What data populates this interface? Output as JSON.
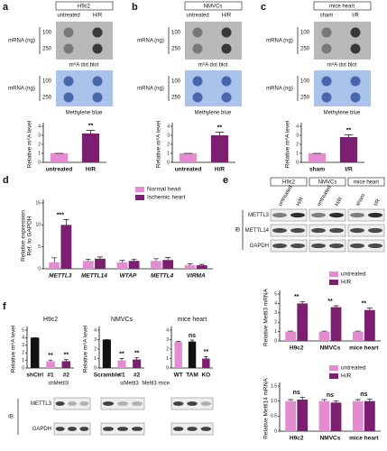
{
  "panel_letters": [
    "a",
    "b",
    "c",
    "d",
    "e",
    "f"
  ],
  "dot_blots": [
    {
      "header": "H9c2",
      "lanes": [
        "untreated",
        "H/R"
      ],
      "amount_label": "mRNA (ng)",
      "amounts": [
        100,
        250
      ],
      "blot_label": "m⁶A dot blot",
      "stain_label": "Methylene blue"
    },
    {
      "header": "NMVCs",
      "lanes": [
        "untreated",
        "H/R"
      ],
      "amount_label": "mRNA (ng)",
      "amounts": [
        100,
        250
      ],
      "blot_label": "m⁶A dot blot",
      "stain_label": "Methylene blue"
    },
    {
      "header": "mice heart",
      "lanes": [
        "sham",
        "I/R"
      ],
      "amount_label": "mRNA (ng)",
      "amounts": [
        100,
        250
      ],
      "blot_label": "m⁶A dot blot",
      "stain_label": "Methylene blue"
    }
  ],
  "western_e": {
    "groups": [
      "H9c2",
      "NMVCs",
      "mice heart"
    ],
    "lanes": [
      "untreated",
      "H/R",
      "untreated",
      "H/R",
      "sham",
      "I/R"
    ],
    "method": "IB",
    "proteins": [
      "METTL3",
      "METTL14",
      "GAPDH"
    ]
  },
  "western_f": {
    "method": "IB",
    "proteins": [
      "METTL3",
      "GAPDH"
    ]
  },
  "chart_data": [
    {
      "type": "bar",
      "ylabel": "Relative m⁶A level",
      "categories": [
        "untreated",
        "H/R"
      ],
      "values": [
        1,
        3.2
      ],
      "errors": [
        0,
        0.35
      ],
      "colors": [
        "#e48bd2",
        "#7d1f70"
      ],
      "sig_labels": [
        null,
        "**"
      ],
      "ylim": [
        0,
        4
      ],
      "yticks": [
        0,
        1,
        2,
        3,
        4
      ]
    },
    {
      "type": "bar",
      "ylabel": "Relative m⁶A level",
      "categories": [
        "untreated",
        "H/R"
      ],
      "values": [
        1,
        3.0
      ],
      "errors": [
        0,
        0.35
      ],
      "colors": [
        "#e48bd2",
        "#7d1f70"
      ],
      "sig_labels": [
        null,
        "**"
      ],
      "ylim": [
        0,
        4
      ],
      "yticks": [
        0,
        1,
        2,
        3,
        4
      ]
    },
    {
      "type": "bar",
      "ylabel": "Relative m⁶A level",
      "categories": [
        "sham",
        "I/R"
      ],
      "values": [
        1,
        2.8
      ],
      "errors": [
        0,
        0.25
      ],
      "colors": [
        "#e48bd2",
        "#7d1f70"
      ],
      "sig_labels": [
        null,
        "**"
      ],
      "ylim": [
        0,
        4
      ],
      "yticks": [
        0,
        1,
        2,
        3,
        4
      ]
    },
    {
      "type": "grouped_bar",
      "ylabel": [
        "Relative expression",
        "Ref. to GAPDH"
      ],
      "categories": [
        "METTL3",
        "METTL14",
        "WTAP",
        "METTL4",
        "VIRMA"
      ],
      "series": [
        {
          "name": "Normal heart",
          "color": "#e48bd2",
          "values": [
            1.5,
            1.8,
            1.5,
            1.8,
            0.8
          ],
          "errors": [
            1.0,
            0.4,
            0.4,
            0.5,
            0.3
          ]
        },
        {
          "name": "Ischemic heart",
          "color": "#7d1f70",
          "values": [
            10,
            2.3,
            1.8,
            2.0,
            0.8
          ],
          "errors": [
            1.2,
            0.4,
            0.4,
            0.6,
            0.2
          ]
        }
      ],
      "sig_labels": [
        "***",
        null,
        null,
        null,
        null
      ],
      "ylim": [
        0,
        15
      ],
      "yticks": [
        0,
        5,
        10,
        15
      ]
    },
    {
      "type": "grouped_bar",
      "ylabel": "Relative Mettl3 mRNA",
      "categories": [
        "H9c2",
        "NMVCs",
        "mice heart"
      ],
      "series": [
        {
          "name": "untreated",
          "color": "#e48bd2",
          "values": [
            1,
            1,
            1
          ],
          "errors": [
            0.05,
            0.05,
            0.05
          ]
        },
        {
          "name": "H/R",
          "color": "#7d1f70",
          "values": [
            4.0,
            3.6,
            3.3
          ],
          "errors": [
            0.2,
            0.15,
            0.2
          ]
        }
      ],
      "sig_labels": [
        "**",
        "**",
        "**"
      ],
      "ylim": [
        0,
        5
      ],
      "yticks": [
        0,
        1,
        2,
        3,
        4,
        5
      ]
    },
    {
      "type": "grouped_bar",
      "ylabel": "Relative Mettl14 mRNA",
      "categories": [
        "H9c2",
        "NMVCs",
        "mice heart"
      ],
      "series": [
        {
          "name": "untreated",
          "color": "#e48bd2",
          "values": [
            1,
            1,
            1
          ],
          "errors": [
            0.05,
            0.05,
            0.05
          ]
        },
        {
          "name": "H/R",
          "color": "#7d1f70",
          "values": [
            1.05,
            0.95,
            1.0
          ],
          "errors": [
            0.08,
            0.06,
            0.07
          ]
        }
      ],
      "sig_labels": [
        "ns",
        "ns",
        "ns"
      ],
      "ylim": [
        0,
        1.5
      ],
      "yticks": [
        0,
        0.5,
        {
          "value": 1,
          "label": "1.0"
        },
        1.5
      ]
    },
    {
      "type": "bar",
      "title": "H9c2",
      "ylabel": "Relative m⁶A level",
      "categories": [
        "shCtrl",
        "#1",
        "#2"
      ],
      "group_label": "shMettl3",
      "values": [
        4,
        0.9,
        0.9
      ],
      "errors": [
        0,
        0.15,
        0.2
      ],
      "colors": [
        "#111111",
        "#e48bd2",
        "#7d1f70"
      ],
      "sig_labels": [
        null,
        "**",
        "**"
      ],
      "ylim": [
        0,
        5
      ],
      "yticks": [
        0,
        1,
        2,
        3,
        4,
        5
      ]
    },
    {
      "type": "bar",
      "title": "NMVCs",
      "ylabel": "Relative m⁶A level",
      "categories": [
        "Scramble",
        "#1",
        "#2"
      ],
      "group_label": "siMettl3",
      "values": [
        3,
        0.8,
        0.9
      ],
      "errors": [
        0,
        0.2,
        0.2
      ],
      "colors": [
        "#111111",
        "#e48bd2",
        "#7d1f70"
      ],
      "sig_labels": [
        null,
        "**",
        "**"
      ],
      "ylim": [
        0,
        4
      ],
      "yticks": [
        0,
        1,
        2,
        3,
        4
      ]
    },
    {
      "type": "bar",
      "title": "mice heart",
      "categories": [
        "WT",
        "TAM",
        "KO"
      ],
      "group_label": "Mettl3 mice",
      "values": [
        2.8,
        2.8,
        1.0
      ],
      "errors": [
        0,
        0.15,
        0.2
      ],
      "colors": [
        "#e48bd2",
        "#111111",
        "#7d1f70"
      ],
      "sig_labels": [
        null,
        "ns",
        "**"
      ],
      "ylim": [
        0,
        4
      ],
      "yticks": [
        0,
        1,
        2,
        3,
        4
      ]
    }
  ]
}
